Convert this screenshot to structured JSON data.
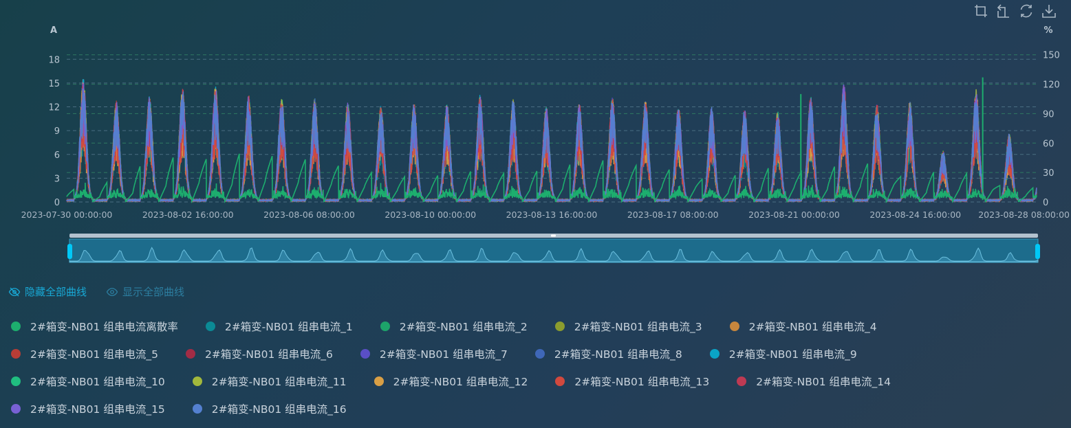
{
  "chart_data": {
    "type": "line",
    "yleft": {
      "unit": "A",
      "ticks": [
        0,
        3,
        6,
        9,
        12,
        15,
        18
      ],
      "range": [
        0,
        19.5
      ]
    },
    "yright": {
      "unit": "%",
      "ticks": [
        0,
        30,
        60,
        90,
        120,
        150
      ],
      "range": [
        0,
        157.5
      ]
    },
    "x_ticks": [
      "2023-07-30 00:00:00",
      "2023-08-02 16:00:00",
      "2023-08-06 08:00:00",
      "2023-08-10 00:00:00",
      "2023-08-13 16:00:00",
      "2023-08-17 08:00:00",
      "2023-08-21 00:00:00",
      "2023-08-24 16:00:00",
      "2023-08-28 08:00:00"
    ],
    "x_range_days": 29.33,
    "daily_peak_current_A": [
      15.5,
      12.6,
      13.2,
      14.2,
      14.4,
      13.3,
      13.0,
      12.9,
      12.4,
      12.0,
      12.3,
      12.2,
      13.3,
      12.8,
      11.8,
      12.2,
      13.0,
      12.6,
      11.9,
      11.8,
      11.5,
      11.2,
      13.2,
      14.8,
      12.2,
      12.5,
      6.3,
      14.0,
      8.5
    ],
    "dispersion_daily_max_pct": [
      18,
      30,
      55,
      65,
      60,
      70,
      65,
      60,
      50,
      40,
      35,
      38,
      45,
      40,
      45,
      55,
      60,
      50,
      45,
      30,
      40,
      50,
      42,
      52,
      55,
      32,
      45,
      40,
      20
    ],
    "dispersion_spikes": [
      {
        "day": 22.2,
        "pct": 110
      },
      {
        "day": 27.7,
        "pct": 127
      }
    ],
    "series": [
      {
        "name": "2#箱变-NB01 组串电流离散率",
        "color": "#1dae6e",
        "axis": "right"
      },
      {
        "name": "2#箱变-NB01 组串电流_1",
        "color": "#0b8a95"
      },
      {
        "name": "2#箱变-NB01 组串电流_2",
        "color": "#1da36a"
      },
      {
        "name": "2#箱变-NB01 组串电流_3",
        "color": "#8b9c2e"
      },
      {
        "name": "2#箱变-NB01 组串电流_4",
        "color": "#c7863d"
      },
      {
        "name": "2#箱变-NB01 组串电流_5",
        "color": "#b83d36"
      },
      {
        "name": "2#箱变-NB01 组串电流_6",
        "color": "#a22c45"
      },
      {
        "name": "2#箱变-NB01 组串电流_7",
        "color": "#5a4fc6"
      },
      {
        "name": "2#箱变-NB01 组串电流_8",
        "color": "#3f67b8"
      },
      {
        "name": "2#箱变-NB01 组串电流_9",
        "color": "#0aa4c6"
      },
      {
        "name": "2#箱变-NB01 组串电流_10",
        "color": "#20be80"
      },
      {
        "name": "2#箱变-NB01 组串电流_11",
        "color": "#a2b83c"
      },
      {
        "name": "2#箱变-NB01 组串电流_12",
        "color": "#d99f45"
      },
      {
        "name": "2#箱变-NB01 组串电流_13",
        "color": "#d1493e"
      },
      {
        "name": "2#箱变-NB01 组串电流_14",
        "color": "#be3a53"
      },
      {
        "name": "2#箱变-NB01 组串电流_15",
        "color": "#7861d4"
      },
      {
        "name": "2#箱变-NB01 组串电流_16",
        "color": "#5480d0"
      }
    ]
  },
  "controls": {
    "hide_all": "隐藏全部曲线",
    "show_all": "显示全部曲线"
  },
  "toolbox": [
    "zoom-icon",
    "zoom-reset-icon",
    "restore-icon",
    "save-image-icon"
  ]
}
